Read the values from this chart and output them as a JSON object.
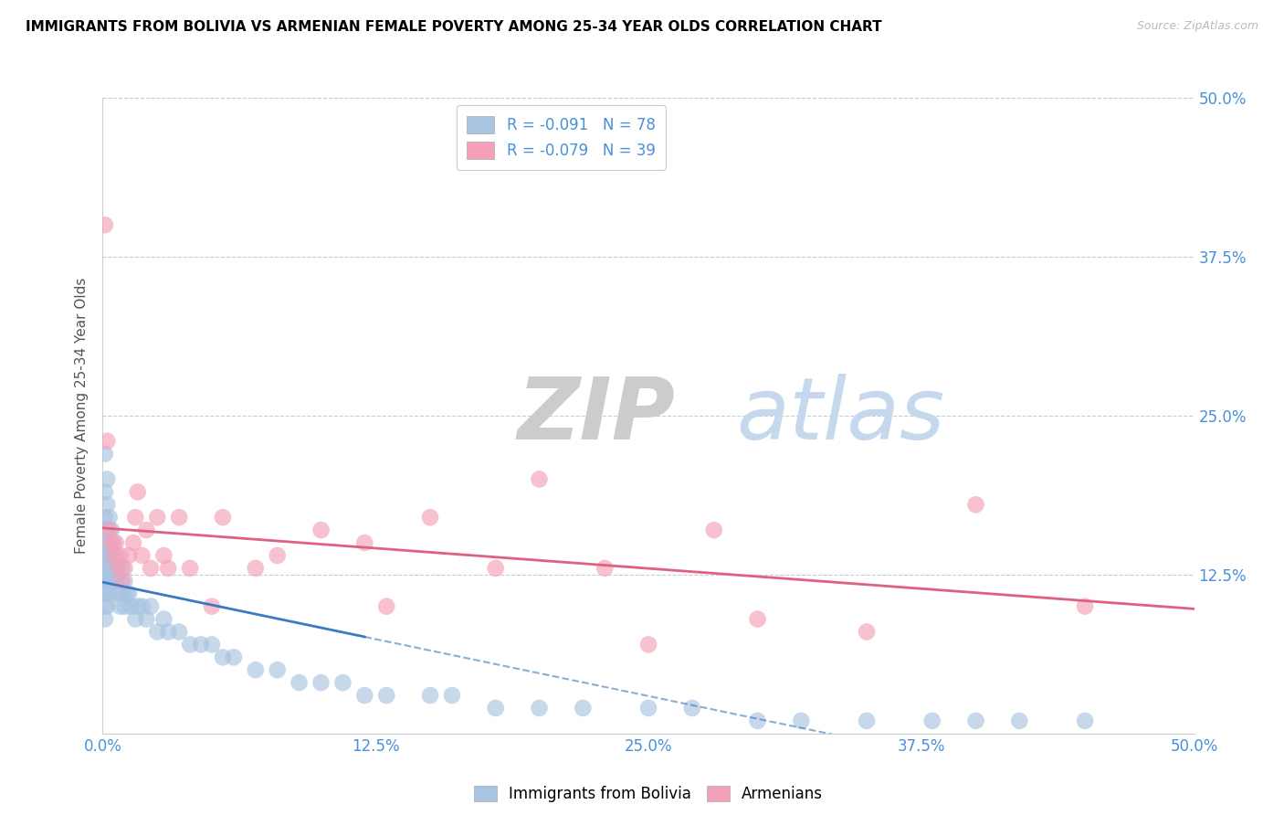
{
  "title": "IMMIGRANTS FROM BOLIVIA VS ARMENIAN FEMALE POVERTY AMONG 25-34 YEAR OLDS CORRELATION CHART",
  "source": "Source: ZipAtlas.com",
  "ylabel": "Female Poverty Among 25-34 Year Olds",
  "xlim": [
    0.0,
    0.5
  ],
  "ylim": [
    0.0,
    0.5
  ],
  "xtick_labels": [
    "0.0%",
    "12.5%",
    "25.0%",
    "37.5%",
    "50.0%"
  ],
  "xtick_vals": [
    0.0,
    0.125,
    0.25,
    0.375,
    0.5
  ],
  "ytick_vals": [
    0.5,
    0.375,
    0.25,
    0.125
  ],
  "ytick_labels_right": [
    "50.0%",
    "37.5%",
    "25.0%",
    "12.5%"
  ],
  "bolivia_color": "#a8c4e0",
  "armenia_color": "#f4a0b8",
  "bolivia_line_color": "#3a7abf",
  "armenia_line_color": "#e06080",
  "bolivia_R": -0.091,
  "bolivia_N": 78,
  "armenia_R": -0.079,
  "armenia_N": 39,
  "legend_label_bolivia": "Immigrants from Bolivia",
  "legend_label_armenia": "Armenians",
  "bolivia_x": [
    0.001,
    0.001,
    0.001,
    0.001,
    0.001,
    0.001,
    0.001,
    0.001,
    0.001,
    0.001,
    0.002,
    0.002,
    0.002,
    0.002,
    0.002,
    0.002,
    0.002,
    0.002,
    0.003,
    0.003,
    0.003,
    0.003,
    0.003,
    0.004,
    0.004,
    0.004,
    0.004,
    0.005,
    0.005,
    0.005,
    0.006,
    0.006,
    0.007,
    0.007,
    0.008,
    0.008,
    0.009,
    0.009,
    0.01,
    0.01,
    0.011,
    0.012,
    0.013,
    0.015,
    0.016,
    0.018,
    0.02,
    0.022,
    0.025,
    0.028,
    0.03,
    0.035,
    0.04,
    0.045,
    0.05,
    0.055,
    0.06,
    0.07,
    0.08,
    0.09,
    0.1,
    0.11,
    0.12,
    0.13,
    0.15,
    0.16,
    0.18,
    0.2,
    0.22,
    0.25,
    0.27,
    0.3,
    0.32,
    0.35,
    0.38,
    0.4,
    0.42,
    0.45
  ],
  "bolivia_y": [
    0.22,
    0.19,
    0.17,
    0.15,
    0.14,
    0.13,
    0.12,
    0.11,
    0.1,
    0.09,
    0.2,
    0.18,
    0.16,
    0.14,
    0.13,
    0.12,
    0.11,
    0.1,
    0.17,
    0.15,
    0.14,
    0.12,
    0.11,
    0.16,
    0.14,
    0.13,
    0.12,
    0.15,
    0.13,
    0.12,
    0.14,
    0.12,
    0.13,
    0.11,
    0.12,
    0.1,
    0.13,
    0.11,
    0.12,
    0.1,
    0.11,
    0.11,
    0.1,
    0.09,
    0.1,
    0.1,
    0.09,
    0.1,
    0.08,
    0.09,
    0.08,
    0.08,
    0.07,
    0.07,
    0.07,
    0.06,
    0.06,
    0.05,
    0.05,
    0.04,
    0.04,
    0.04,
    0.03,
    0.03,
    0.03,
    0.03,
    0.02,
    0.02,
    0.02,
    0.02,
    0.02,
    0.01,
    0.01,
    0.01,
    0.01,
    0.01,
    0.01,
    0.01
  ],
  "armenia_x": [
    0.001,
    0.002,
    0.003,
    0.004,
    0.005,
    0.006,
    0.007,
    0.008,
    0.009,
    0.01,
    0.012,
    0.014,
    0.015,
    0.016,
    0.018,
    0.02,
    0.022,
    0.025,
    0.028,
    0.03,
    0.035,
    0.04,
    0.05,
    0.055,
    0.07,
    0.08,
    0.1,
    0.12,
    0.13,
    0.15,
    0.18,
    0.2,
    0.23,
    0.25,
    0.28,
    0.3,
    0.35,
    0.4,
    0.45
  ],
  "armenia_y": [
    0.4,
    0.23,
    0.16,
    0.15,
    0.14,
    0.15,
    0.13,
    0.14,
    0.12,
    0.13,
    0.14,
    0.15,
    0.17,
    0.19,
    0.14,
    0.16,
    0.13,
    0.17,
    0.14,
    0.13,
    0.17,
    0.13,
    0.1,
    0.17,
    0.13,
    0.14,
    0.16,
    0.15,
    0.1,
    0.17,
    0.13,
    0.2,
    0.13,
    0.07,
    0.16,
    0.09,
    0.08,
    0.18,
    0.1
  ]
}
